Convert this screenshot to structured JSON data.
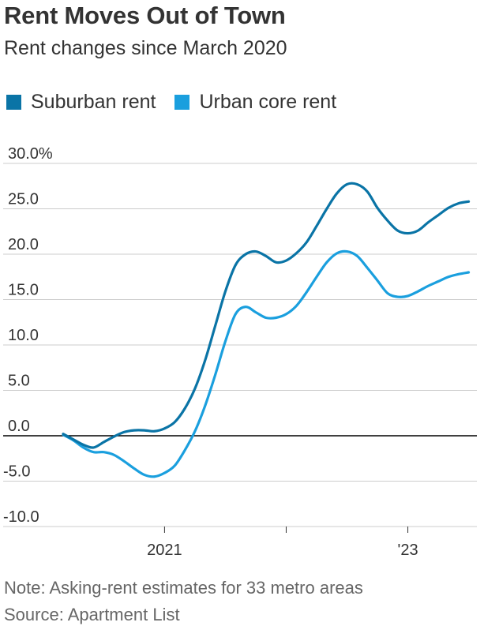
{
  "header": {
    "title": "Rent Moves Out of Town",
    "subtitle": "Rent changes since March 2020"
  },
  "footer": {
    "note": "Note: Asking-rent estimates for 33 metro areas",
    "source": "Source: Apartment List"
  },
  "colors": {
    "suburban": "#0a74a6",
    "urban": "#1a9fde",
    "grid": "#cccccc",
    "zero_line": "#000000",
    "text": "#333333",
    "footer_text": "#666666"
  },
  "chart_data": {
    "type": "line",
    "title": "Rent Moves Out of Town",
    "subtitle": "Rent changes since March 2020",
    "xlabel": "",
    "ylabel": "",
    "ylim": [
      -10,
      30
    ],
    "y_ticks": [
      30,
      25,
      20,
      15,
      10,
      5,
      0,
      -5,
      -10
    ],
    "y_tick_labels": [
      "30.0%",
      "25.0",
      "20.0",
      "15.0",
      "10.0",
      "5.0",
      "0.0",
      "-5.0",
      "-10.0"
    ],
    "x_ticks": [
      {
        "month": 10,
        "label": "2021"
      },
      {
        "month": 22,
        "label": ""
      },
      {
        "month": 34,
        "label": "'23"
      }
    ],
    "x_range_months": [
      0,
      40.5
    ],
    "x_unit": "months since March 2020",
    "grid": "horizontal",
    "legend_position": "top-left",
    "series": [
      {
        "name": "Suburban rent",
        "color_key": "suburban",
        "months": [
          0,
          1,
          2,
          3,
          4,
          5,
          6,
          7,
          8,
          9,
          10,
          11,
          12,
          13,
          14,
          15,
          16,
          17,
          18,
          19,
          20,
          21,
          22,
          23,
          24,
          25,
          26,
          27,
          28,
          29,
          30,
          31,
          32,
          33,
          34,
          35,
          36,
          37,
          38,
          39,
          40
        ],
        "values": [
          0.2,
          -0.4,
          -1.0,
          -1.3,
          -0.7,
          -0.1,
          0.4,
          0.6,
          0.6,
          0.5,
          0.8,
          1.5,
          3.0,
          5.2,
          8.3,
          12.1,
          15.9,
          18.8,
          20.0,
          20.3,
          19.8,
          19.1,
          19.3,
          20.1,
          21.3,
          23.1,
          25.0,
          26.7,
          27.7,
          27.7,
          26.9,
          25.1,
          23.7,
          22.6,
          22.3,
          22.6,
          23.5,
          24.3,
          25.1,
          25.6,
          25.8
        ]
      },
      {
        "name": "Urban core rent",
        "color_key": "urban",
        "months": [
          0,
          1,
          2,
          3,
          4,
          5,
          6,
          7,
          8,
          9,
          10,
          11,
          12,
          13,
          14,
          15,
          16,
          17,
          18,
          19,
          20,
          21,
          22,
          23,
          24,
          25,
          26,
          27,
          28,
          29,
          30,
          31,
          32,
          33,
          34,
          35,
          36,
          37,
          38,
          39,
          40
        ],
        "values": [
          0.1,
          -0.5,
          -1.3,
          -1.8,
          -1.8,
          -2.1,
          -2.8,
          -3.6,
          -4.3,
          -4.5,
          -4.1,
          -3.3,
          -1.6,
          0.5,
          3.3,
          6.7,
          10.4,
          13.4,
          14.2,
          13.6,
          13.0,
          13.0,
          13.4,
          14.3,
          15.8,
          17.5,
          19.1,
          20.1,
          20.3,
          19.8,
          18.5,
          17.1,
          15.7,
          15.3,
          15.4,
          15.9,
          16.5,
          17.0,
          17.5,
          17.8,
          18.0
        ]
      }
    ]
  }
}
